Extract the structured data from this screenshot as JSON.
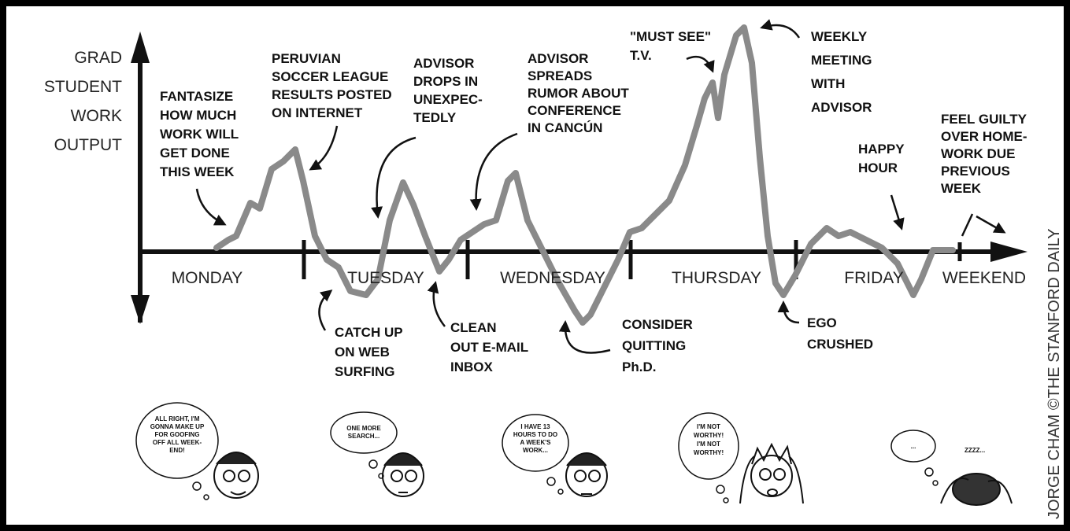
{
  "axis": {
    "y_label": [
      "GRAD",
      "STUDENT",
      "WORK",
      "OUTPUT"
    ],
    "x_labels": [
      "MONDAY",
      "TUESDAY",
      "WEDNESDAY",
      "THURSDAY",
      "FRIDAY",
      "WEEKEND"
    ]
  },
  "annotations": [
    {
      "lines": [
        "FANTASIZE",
        "HOW MUCH",
        "WORK WILL",
        "GET DONE",
        "THIS WEEK"
      ]
    },
    {
      "lines": [
        "PERUVIAN",
        "SOCCER LEAGUE",
        "RESULTS POSTED",
        "ON INTERNET"
      ]
    },
    {
      "lines": [
        "ADVISOR",
        "DROPS IN",
        "UNEXPEC-",
        "TEDLY"
      ]
    },
    {
      "lines": [
        "ADVISOR",
        "SPREADS",
        "RUMOR ABOUT",
        "CONFERENCE",
        "IN CANCÚN"
      ]
    },
    {
      "lines": [
        "\"MUST SEE\"",
        "T.V."
      ]
    },
    {
      "lines": [
        "WEEKLY",
        "MEETING",
        "WITH",
        "ADVISOR"
      ]
    },
    {
      "lines": [
        "HAPPY",
        "HOUR"
      ]
    },
    {
      "lines": [
        "FEEL GUILTY",
        "OVER HOME-",
        "WORK DUE",
        "PREVIOUS",
        "WEEK"
      ]
    },
    {
      "lines": [
        "CATCH UP",
        "ON WEB",
        "SURFING"
      ]
    },
    {
      "lines": [
        "CLEAN",
        "OUT E-MAIL",
        "INBOX"
      ]
    },
    {
      "lines": [
        "CONSIDER",
        "QUITTING",
        "Ph.D."
      ]
    },
    {
      "lines": [
        "EGO",
        "CRUSHED"
      ]
    }
  ],
  "thoughts": [
    {
      "lines": [
        "ALL RIGHT, I'M",
        "GONNA MAKE UP",
        "FOR GOOFING",
        "OFF ALL WEEK-",
        "END!"
      ]
    },
    {
      "lines": [
        "ONE MORE",
        "SEARCH..."
      ]
    },
    {
      "lines": [
        "I HAVE 13",
        "HOURS TO DO",
        "A WEEK'S",
        "WORK..."
      ]
    },
    {
      "lines": [
        "I'M NOT",
        "WORTHY!",
        "I'M NOT",
        "WORTHY!"
      ]
    },
    {
      "lines": [
        "..."
      ]
    }
  ],
  "snore": "ZZZZ...",
  "credit": "JORGE CHAM ©THE STANFORD DAILY"
}
